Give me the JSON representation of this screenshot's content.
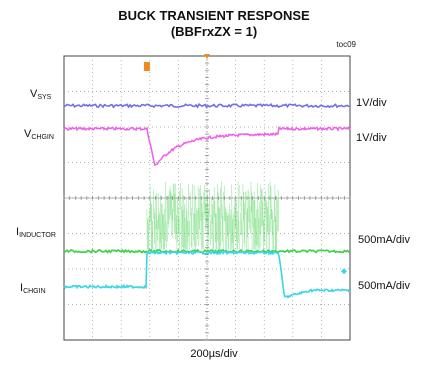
{
  "chart_data": {
    "type": "line",
    "title": "BUCK TRANSIENT RESPONSE",
    "subtitle": "(BBFrxZX = 1)",
    "figure_code": "toc09",
    "x_scale": "200µs/div",
    "grid": true,
    "divisions": {
      "x": 10,
      "y": 8
    },
    "event_div": 2.9,
    "release_div": 7.5,
    "series": [
      {
        "name": "V",
        "sub": "SYS",
        "scale": "1V/div",
        "color": "#6f6fe6",
        "baseline_div": 1.4,
        "behavior": "flat"
      },
      {
        "name": "V",
        "sub": "CHGIN",
        "scale": "1V/div",
        "color": "#ee5fe8",
        "baseline_div": 2.05,
        "dip_div": 1.25,
        "during_div": 2.2,
        "behavior": "dip-recover"
      },
      {
        "name": "I",
        "sub": "INDUCTOR",
        "scale": "500mA/div",
        "color": "#3fd04a",
        "baseline_div": 5.5,
        "burst_top_div": 3.5,
        "burst_bottom_div": 5.45,
        "behavior": "burst"
      },
      {
        "name": "I",
        "sub": "CHGIN",
        "scale": "500mA/div",
        "color": "#36d6e6",
        "baseline_div": 6.5,
        "during_div": 5.5,
        "after_div": 6.6,
        "behavior": "step-up"
      }
    ]
  }
}
